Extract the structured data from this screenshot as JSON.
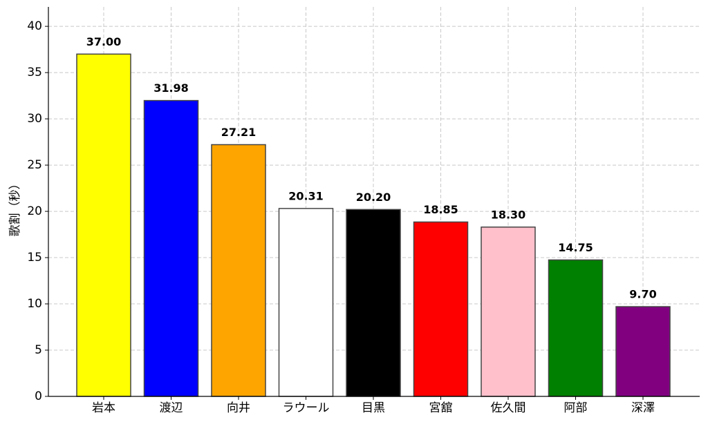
{
  "chart_data": {
    "type": "bar",
    "y_label": "歌割（秒）",
    "categories": [
      "岩本",
      "渡辺",
      "向井",
      "ラウール",
      "目黒",
      "宮舘",
      "佐久間",
      "阿部",
      "深澤"
    ],
    "values": [
      37,
      31.98,
      27.21,
      20.31,
      20.2,
      18.85,
      18.3,
      14.75,
      9.7
    ],
    "value_labels": [
      "37.00",
      "31.98",
      "27.21",
      "20.31",
      "20.20",
      "18.85",
      "18.30",
      "14.75",
      "9.70"
    ],
    "colors": [
      "#ffff00",
      "#0000ff",
      "#ffa500",
      "#ffffff",
      "#000000",
      "#ff0000",
      "#ffc0cb",
      "#008000",
      "#800080"
    ],
    "ylim": [
      0,
      42.1
    ],
    "yticks": [
      0,
      5,
      10,
      15,
      20,
      25,
      30,
      35,
      40
    ],
    "grid": true
  }
}
